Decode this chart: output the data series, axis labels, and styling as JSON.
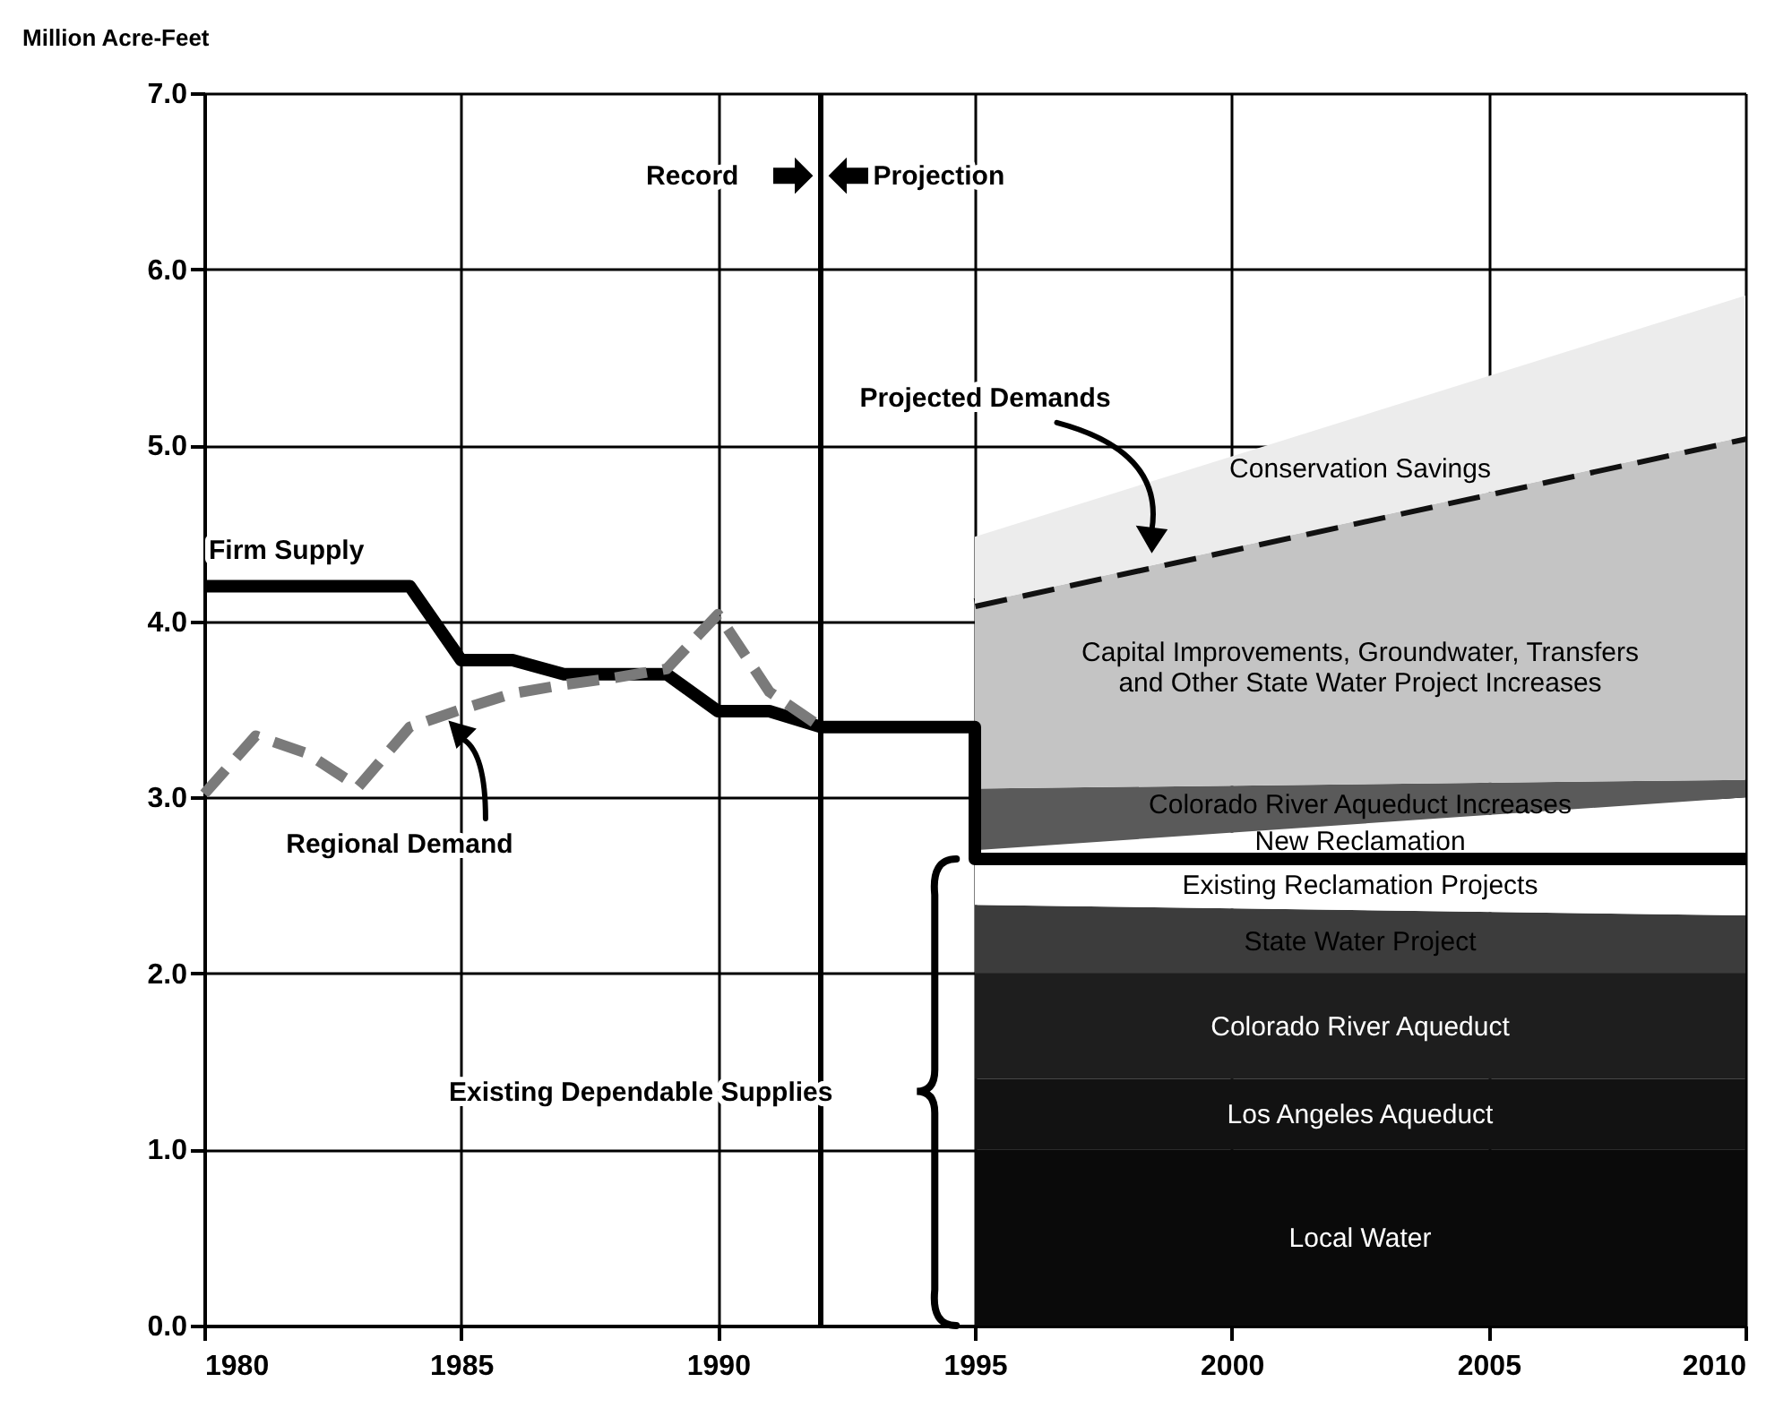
{
  "chart_data": {
    "type": "area",
    "ylabel": "Million Acre-Feet",
    "xlim": [
      1980,
      2010
    ],
    "xticks": [
      1980,
      1985,
      1990,
      1995,
      2000,
      2005,
      2010
    ],
    "ylim": [
      0,
      7
    ],
    "yticks": [
      {
        "value": 0,
        "label": "0.0"
      },
      {
        "value": 1,
        "label": "1.0"
      },
      {
        "value": 2,
        "label": "2.0"
      },
      {
        "value": 3,
        "label": "3.0"
      },
      {
        "value": 4,
        "label": "4.0"
      },
      {
        "value": 5,
        "label": "5.0"
      },
      {
        "value": 6,
        "label": "6.0"
      },
      {
        "value": 7,
        "label": "7.0"
      }
    ],
    "grid": true,
    "stacked": true,
    "series": [
      {
        "name": "Local Water",
        "x": [
          1995,
          2010
        ],
        "values": [
          1.0,
          1.0
        ],
        "color": "#0a0a0a"
      },
      {
        "name": "Los Angeles Aqueduct",
        "type": "area",
        "x": [
          1995,
          2010
        ],
        "values": [
          0.4,
          0.4
        ],
        "color": "#121212"
      },
      {
        "name": "Colorado River Aqueduct",
        "type": "area",
        "x": [
          1995,
          2010
        ],
        "values": [
          0.6,
          0.6
        ],
        "color": "#1e1e1e"
      },
      {
        "name": "State Water Project",
        "type": "area",
        "x": [
          1995,
          2010
        ],
        "values": [
          0.39,
          0.33
        ],
        "color": "#3c3c3c"
      },
      {
        "name": "Existing Reclamation Projects",
        "type": "area",
        "x": [
          1995,
          2010
        ],
        "values": [
          0.26,
          0.32
        ],
        "color": "#ffffff"
      },
      {
        "name": "New Reclamation",
        "type": "area",
        "x": [
          1995,
          2010
        ],
        "values": [
          0.05,
          0.35
        ],
        "color": "#ffffff"
      },
      {
        "name": "Colorado River Aqueduct Increases",
        "type": "area",
        "x": [
          1995,
          2010
        ],
        "values": [
          0.35,
          0.1
        ],
        "color": "#5a5a5a"
      },
      {
        "name": "Capital Improvements, Groundwater, Transfers and Other State Water Project Increases",
        "type": "area",
        "x": [
          1995,
          2010
        ],
        "values": [
          1.05,
          1.95
        ],
        "color": "#c4c4c4",
        "line_style": "dashed"
      },
      {
        "name": "Conservation Savings",
        "type": "area",
        "x": [
          1995,
          2010
        ],
        "values": [
          0.38,
          0.8
        ],
        "color": "#ececec"
      },
      {
        "type": "line",
        "x": [
          1980,
          1984,
          1985,
          1986,
          1987,
          1989,
          1990,
          1991,
          1992,
          1995,
          1995,
          2010
        ],
        "values": [
          4.2,
          4.2,
          3.78,
          3.78,
          3.7,
          3.7,
          3.49,
          3.49,
          3.4,
          3.4,
          2.65,
          2.65
        ],
        "color": "#000000",
        "line_style": "solid"
      },
      {
        "type": "line",
        "x": [
          1980,
          1981,
          1982,
          1983,
          1984,
          1985,
          1986,
          1987,
          1988,
          1989,
          1990,
          1991,
          1992
        ],
        "values": [
          3.02,
          3.35,
          3.25,
          3.06,
          3.4,
          3.5,
          3.59,
          3.64,
          3.68,
          3.73,
          4.04,
          3.6,
          3.4
        ],
        "color": "#7a7a7a",
        "line_style": "dashed"
      }
    ],
    "ref_lines": [
      {
        "axis": "x",
        "value": 1992,
        "color": "#000000"
      }
    ],
    "annotations": [
      "Record",
      "Projection",
      "Projected Demands",
      "Firm Supply",
      "Regional Demand",
      "Existing Dependable Supplies"
    ]
  }
}
